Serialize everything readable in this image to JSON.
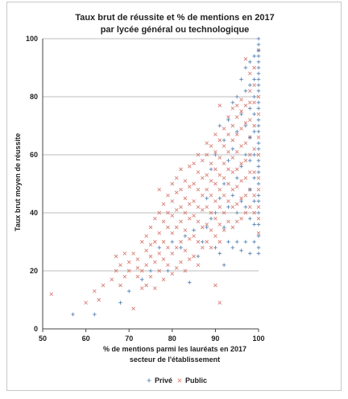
{
  "chart_data": {
    "type": "scatter",
    "title": [
      "Taux brut de réussite et  % de mentions en 2017",
      "par lycée général ou technologique"
    ],
    "xlabel": [
      "% de mentions parmi les lauréats en 2017",
      "secteur de l'établissement"
    ],
    "ylabel": "Taux brut moyen de réussite",
    "xlim": [
      50,
      100
    ],
    "ylim": [
      0,
      100
    ],
    "x_ticks": [
      50,
      60,
      70,
      80,
      90,
      100
    ],
    "y_ticks": [
      0,
      20,
      40,
      60,
      80,
      100
    ],
    "grid": "horizontal",
    "legend_position": "bottom",
    "series": [
      {
        "name": "Privé",
        "marker": "+",
        "color": "#5b86b5",
        "points": [
          [
            57,
            5
          ],
          [
            62,
            5
          ],
          [
            68,
            9
          ],
          [
            70,
            13
          ],
          [
            73,
            17
          ],
          [
            75,
            20
          ],
          [
            77,
            28
          ],
          [
            79,
            20
          ],
          [
            80,
            30
          ],
          [
            82,
            28
          ],
          [
            83,
            32
          ],
          [
            84,
            16
          ],
          [
            85,
            34
          ],
          [
            86,
            25
          ],
          [
            87,
            30
          ],
          [
            88,
            35
          ],
          [
            88,
            45
          ],
          [
            89,
            38
          ],
          [
            89,
            55
          ],
          [
            90,
            28
          ],
          [
            90,
            40
          ],
          [
            90,
            60
          ],
          [
            91,
            26
          ],
          [
            91,
            45
          ],
          [
            91,
            70
          ],
          [
            92,
            22
          ],
          [
            92,
            35
          ],
          [
            92,
            50
          ],
          [
            92,
            65
          ],
          [
            93,
            30
          ],
          [
            93,
            42
          ],
          [
            93,
            58
          ],
          [
            93,
            72
          ],
          [
            94,
            28
          ],
          [
            94,
            46
          ],
          [
            94,
            62
          ],
          [
            94,
            78
          ],
          [
            95,
            30
          ],
          [
            95,
            40
          ],
          [
            95,
            52
          ],
          [
            95,
            68
          ],
          [
            95,
            80
          ],
          [
            96,
            27
          ],
          [
            96,
            44
          ],
          [
            96,
            56
          ],
          [
            96,
            74
          ],
          [
            96,
            86
          ],
          [
            97,
            30
          ],
          [
            97,
            42
          ],
          [
            97,
            60
          ],
          [
            97,
            70
          ],
          [
            97,
            82
          ],
          [
            97,
            90
          ],
          [
            98,
            26
          ],
          [
            98,
            38
          ],
          [
            98,
            48
          ],
          [
            98,
            58
          ],
          [
            98,
            66
          ],
          [
            98,
            76
          ],
          [
            98,
            84
          ],
          [
            98,
            92
          ],
          [
            99,
            30
          ],
          [
            99,
            36
          ],
          [
            99,
            44
          ],
          [
            99,
            52
          ],
          [
            99,
            60
          ],
          [
            99,
            68
          ],
          [
            99,
            74
          ],
          [
            99,
            80
          ],
          [
            99,
            86
          ],
          [
            99,
            94
          ],
          [
            100,
            26
          ],
          [
            100,
            28
          ],
          [
            100,
            32
          ],
          [
            100,
            36
          ],
          [
            100,
            40
          ],
          [
            100,
            44
          ],
          [
            100,
            46
          ],
          [
            100,
            50
          ],
          [
            100,
            54
          ],
          [
            100,
            56
          ],
          [
            100,
            58
          ],
          [
            100,
            62
          ],
          [
            100,
            64
          ],
          [
            100,
            68
          ],
          [
            100,
            70
          ],
          [
            100,
            72
          ],
          [
            100,
            76
          ],
          [
            100,
            78
          ],
          [
            100,
            82
          ],
          [
            100,
            84
          ],
          [
            100,
            86
          ],
          [
            100,
            88
          ],
          [
            100,
            90
          ],
          [
            100,
            92
          ],
          [
            100,
            94
          ],
          [
            100,
            96
          ],
          [
            100,
            98
          ],
          [
            100,
            100
          ]
        ]
      },
      {
        "name": "Public",
        "marker": "x",
        "color": "#d9837a",
        "points": [
          [
            52,
            12
          ],
          [
            60,
            9
          ],
          [
            62,
            13
          ],
          [
            63,
            10
          ],
          [
            64,
            15
          ],
          [
            66,
            17
          ],
          [
            67,
            25
          ],
          [
            67,
            20
          ],
          [
            68,
            22
          ],
          [
            68,
            15
          ],
          [
            69,
            26
          ],
          [
            69,
            18
          ],
          [
            70,
            20
          ],
          [
            70,
            23
          ],
          [
            71,
            7
          ],
          [
            71,
            26
          ],
          [
            72,
            18
          ],
          [
            72,
            21
          ],
          [
            72,
            24
          ],
          [
            73,
            14
          ],
          [
            73,
            20
          ],
          [
            73,
            30
          ],
          [
            74,
            15
          ],
          [
            74,
            22
          ],
          [
            74,
            27
          ],
          [
            74,
            32
          ],
          [
            75,
            18
          ],
          [
            75,
            25
          ],
          [
            75,
            29
          ],
          [
            75,
            35
          ],
          [
            76,
            14
          ],
          [
            76,
            23
          ],
          [
            76,
            30
          ],
          [
            76,
            38
          ],
          [
            77,
            20
          ],
          [
            77,
            26
          ],
          [
            77,
            33
          ],
          [
            77,
            40
          ],
          [
            77,
            48
          ],
          [
            78,
            17
          ],
          [
            78,
            24
          ],
          [
            78,
            30
          ],
          [
            78,
            37
          ],
          [
            78,
            43
          ],
          [
            79,
            22
          ],
          [
            79,
            28
          ],
          [
            79,
            35
          ],
          [
            79,
            40
          ],
          [
            79,
            46
          ],
          [
            80,
            19
          ],
          [
            80,
            26
          ],
          [
            80,
            33
          ],
          [
            80,
            39
          ],
          [
            80,
            44
          ],
          [
            80,
            50
          ],
          [
            81,
            21
          ],
          [
            81,
            28
          ],
          [
            81,
            35
          ],
          [
            81,
            41
          ],
          [
            81,
            47
          ],
          [
            81,
            52
          ],
          [
            82,
            23
          ],
          [
            82,
            30
          ],
          [
            82,
            37
          ],
          [
            82,
            42
          ],
          [
            82,
            48
          ],
          [
            82,
            55
          ],
          [
            83,
            20
          ],
          [
            83,
            27
          ],
          [
            83,
            34
          ],
          [
            83,
            40
          ],
          [
            83,
            45
          ],
          [
            83,
            51
          ],
          [
            84,
            24
          ],
          [
            84,
            31
          ],
          [
            84,
            38
          ],
          [
            84,
            43
          ],
          [
            84,
            49
          ],
          [
            84,
            56
          ],
          [
            85,
            25
          ],
          [
            85,
            32
          ],
          [
            85,
            39
          ],
          [
            85,
            44
          ],
          [
            85,
            50
          ],
          [
            85,
            57
          ],
          [
            86,
            22
          ],
          [
            86,
            30
          ],
          [
            86,
            37
          ],
          [
            86,
            42
          ],
          [
            86,
            48
          ],
          [
            86,
            54
          ],
          [
            86,
            60
          ],
          [
            87,
            28
          ],
          [
            87,
            35
          ],
          [
            87,
            41
          ],
          [
            87,
            46
          ],
          [
            87,
            52
          ],
          [
            87,
            58
          ],
          [
            88,
            30
          ],
          [
            88,
            36
          ],
          [
            88,
            42
          ],
          [
            88,
            48
          ],
          [
            88,
            53
          ],
          [
            88,
            60
          ],
          [
            88,
            64
          ],
          [
            89,
            28
          ],
          [
            89,
            34
          ],
          [
            89,
            40
          ],
          [
            89,
            46
          ],
          [
            89,
            51
          ],
          [
            89,
            57
          ],
          [
            89,
            63
          ],
          [
            90,
            15
          ],
          [
            90,
            32
          ],
          [
            90,
            38
          ],
          [
            90,
            44
          ],
          [
            90,
            50
          ],
          [
            90,
            55
          ],
          [
            90,
            61
          ],
          [
            90,
            67
          ],
          [
            91,
            9
          ],
          [
            91,
            30
          ],
          [
            91,
            36
          ],
          [
            91,
            42
          ],
          [
            91,
            48
          ],
          [
            91,
            53
          ],
          [
            91,
            59
          ],
          [
            91,
            65
          ],
          [
            91,
            77
          ],
          [
            92,
            34
          ],
          [
            92,
            40
          ],
          [
            92,
            46
          ],
          [
            92,
            52
          ],
          [
            92,
            57
          ],
          [
            92,
            63
          ],
          [
            92,
            69
          ],
          [
            93,
            37
          ],
          [
            93,
            44
          ],
          [
            93,
            50
          ],
          [
            93,
            55
          ],
          [
            93,
            61
          ],
          [
            93,
            67
          ],
          [
            93,
            73
          ],
          [
            94,
            35
          ],
          [
            94,
            42
          ],
          [
            94,
            48
          ],
          [
            94,
            54
          ],
          [
            94,
            59
          ],
          [
            94,
            65
          ],
          [
            94,
            70
          ],
          [
            94,
            76
          ],
          [
            95,
            37
          ],
          [
            95,
            43
          ],
          [
            95,
            49
          ],
          [
            95,
            55
          ],
          [
            95,
            61
          ],
          [
            95,
            67
          ],
          [
            95,
            73
          ],
          [
            95,
            77
          ],
          [
            96,
            38
          ],
          [
            96,
            45
          ],
          [
            96,
            51
          ],
          [
            96,
            57
          ],
          [
            96,
            63
          ],
          [
            96,
            69
          ],
          [
            96,
            75
          ],
          [
            96,
            79
          ],
          [
            97,
            40
          ],
          [
            97,
            46
          ],
          [
            97,
            52
          ],
          [
            97,
            58
          ],
          [
            97,
            64
          ],
          [
            97,
            71
          ],
          [
            97,
            77
          ],
          [
            97,
            93
          ],
          [
            98,
            42
          ],
          [
            98,
            48
          ],
          [
            98,
            54
          ],
          [
            98,
            60
          ],
          [
            98,
            66
          ],
          [
            98,
            72
          ],
          [
            98,
            78
          ],
          [
            98,
            82
          ],
          [
            98,
            88
          ],
          [
            99,
            40
          ],
          [
            99,
            46
          ],
          [
            99,
            54
          ],
          [
            99,
            62
          ],
          [
            99,
            70
          ],
          [
            99,
            78
          ],
          [
            99,
            84
          ],
          [
            99,
            90
          ],
          [
            100,
            33
          ],
          [
            100,
            38
          ],
          [
            100,
            42
          ],
          [
            100,
            48
          ],
          [
            100,
            52
          ],
          [
            100,
            60
          ],
          [
            100,
            66
          ],
          [
            100,
            74
          ],
          [
            100,
            80
          ],
          [
            100,
            96
          ]
        ]
      }
    ]
  }
}
